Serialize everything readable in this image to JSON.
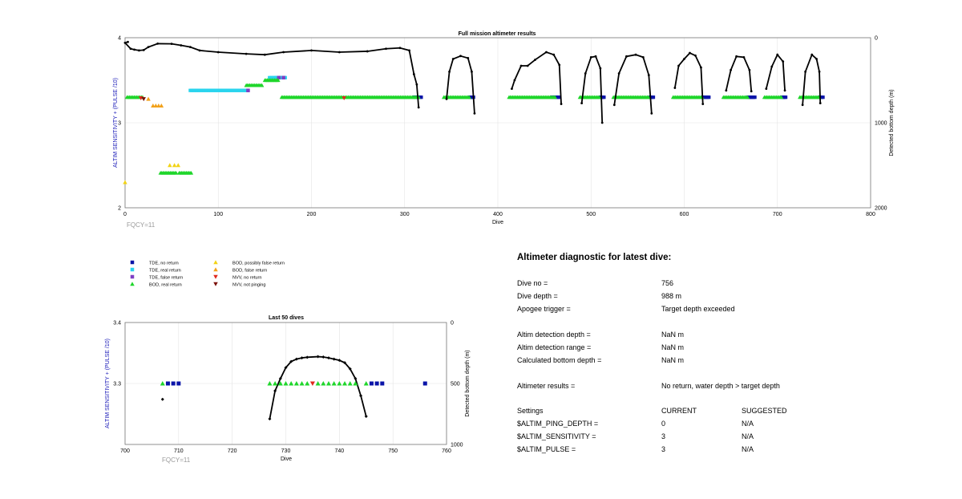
{
  "chart_data": [
    {
      "type": "scatter",
      "title": "Full mission altimeter results",
      "xlabel": "Dive",
      "ylabel": "ALTIM SENSITIVITY + (PULSE /10)",
      "y2label": "Detected bottom depth (m)",
      "xlim": [
        0,
        800
      ],
      "ylim": [
        2,
        4
      ],
      "y2lim": [
        2000,
        0
      ],
      "xticks": [
        "0",
        "100",
        "200",
        "300",
        "400",
        "500",
        "600",
        "700",
        "800"
      ],
      "yticks": [
        "2",
        "3",
        "4"
      ],
      "y2ticks": [
        "0",
        "1000",
        "2000"
      ],
      "grid": true,
      "annotation": "FQCY=11",
      "series": [
        {
          "name": "TDE, no return",
          "marker": "square",
          "color": "#0a14a8",
          "segments": [
            [
              310,
              318
            ],
            [
              370,
              374
            ],
            [
              458,
              466
            ],
            [
              510,
              514
            ],
            [
              563,
              567
            ],
            [
              620,
              627
            ],
            [
              668,
              676
            ],
            [
              705,
              710
            ],
            [
              745,
              750
            ]
          ]
        },
        {
          "name": "TDE, real return",
          "marker": "square",
          "color": "#2ad4ee",
          "segments": [
            [
              70,
              132
            ],
            [
              155,
              172
            ],
            [
              162,
              172
            ]
          ]
        },
        {
          "name": "TDE, false return",
          "marker": "square",
          "color": "#7e3fc4",
          "points": [
            [
              132,
              3.38
            ],
            [
              170,
              3.53
            ],
            [
              165,
              3.53
            ]
          ]
        },
        {
          "name": "BOD, real return",
          "marker": "triangle-up",
          "color": "#1fd62b",
          "segments": [
            [
              2,
              20
            ],
            [
              168,
              316
            ],
            [
              342,
              370
            ],
            [
              412,
              462
            ],
            [
              488,
              510
            ],
            [
              524,
              562
            ],
            [
              588,
              620
            ],
            [
              642,
              668
            ],
            [
              686,
              705
            ],
            [
              724,
              745
            ],
            [
              130,
              148
            ],
            [
              150,
              165
            ],
            [
              38,
              55
            ],
            [
              58,
              72
            ]
          ]
        },
        {
          "name": "BOD, possibly false return",
          "marker": "triangle-up",
          "color": "#f2d315",
          "points": [
            [
              0,
              2.3
            ],
            [
              48,
              2.5
            ],
            [
              53,
              2.5
            ],
            [
              57,
              2.5
            ]
          ]
        },
        {
          "name": "BOD, false return",
          "marker": "triangle-up",
          "color": "#f2a11a",
          "points": [
            [
              30,
              3.2
            ],
            [
              33,
              3.2
            ],
            [
              36,
              3.2
            ],
            [
              39,
              3.2
            ],
            [
              25,
              3.28
            ]
          ]
        },
        {
          "name": "NVV, no return",
          "marker": "triangle-down",
          "color": "#e0281d",
          "points": [
            [
              17,
              3.29
            ],
            [
              235,
              3.29
            ]
          ]
        },
        {
          "name": "NVV, not pinging",
          "marker": "triangle-down",
          "color": "#7a1008",
          "points": [
            [
              20,
              3.28
            ]
          ]
        }
      ]
    },
    {
      "type": "scatter",
      "title": "Last 50 dives",
      "xlabel": "Dive",
      "ylabel": "ALTIM SENSITIVITY + (PULSE /10)",
      "y2label": "Detected bottom depth (m)",
      "xlim": [
        700,
        760
      ],
      "ylim": [
        3.2,
        3.4
      ],
      "y2lim": [
        1000,
        0
      ],
      "xticks": [
        "700",
        "710",
        "720",
        "730",
        "740",
        "750",
        "760"
      ],
      "yticks": [
        "3.3",
        "3.4"
      ],
      "y2ticks": [
        "0",
        "500",
        "1000"
      ],
      "grid": true,
      "annotation": "FQCY=11",
      "series": [
        {
          "name": "TDE, no return",
          "marker": "square",
          "color": "#0a14a8",
          "x": [
            708,
            709,
            710,
            746,
            747,
            748,
            756
          ],
          "y": 3.3
        },
        {
          "name": "BOD, real return",
          "marker": "triangle-up",
          "color": "#1fd62b",
          "x": [
            707,
            727,
            728,
            729,
            730,
            731,
            732,
            733,
            734,
            736,
            737,
            738,
            739,
            740,
            741,
            742,
            743,
            745
          ],
          "y": 3.3
        },
        {
          "name": "NVV, no return",
          "marker": "triangle-down",
          "color": "#e0281d",
          "x": [
            735
          ],
          "y": 3.3
        },
        {
          "name": "detected bottom depth",
          "marker": "diamond",
          "color": "#000000",
          "x": [
            707,
            727,
            728,
            729,
            730,
            731,
            732,
            733,
            734,
            736,
            737,
            738,
            739,
            740,
            741,
            742,
            743,
            744,
            745
          ],
          "depth": [
            630,
            790,
            560,
            460,
            370,
            320,
            300,
            290,
            285,
            280,
            283,
            290,
            300,
            310,
            330,
            380,
            460,
            600,
            770
          ]
        }
      ]
    }
  ],
  "legend": [
    {
      "label": "TDE, no return",
      "marker": "square",
      "color": "#0a14a8"
    },
    {
      "label": "TDE, real return",
      "marker": "square",
      "color": "#2ad4ee"
    },
    {
      "label": "TDE, false return",
      "marker": "square",
      "color": "#7e3fc4"
    },
    {
      "label": "BOD, real return",
      "marker": "triangle-up",
      "color": "#1fd62b"
    },
    {
      "label": "BOD, possibly false return",
      "marker": "triangle-up",
      "color": "#f2d315"
    },
    {
      "label": "BOD, false return",
      "marker": "triangle-up",
      "color": "#f2a11a"
    },
    {
      "label": "NVV, no return",
      "marker": "triangle-down",
      "color": "#e0281d"
    },
    {
      "label": "NVV, not pinging",
      "marker": "triangle-down",
      "color": "#7a1008"
    }
  ],
  "diagnostic": {
    "title": "Altimeter diagnostic for latest dive:",
    "rows": [
      {
        "label": "Dive no =",
        "value": "756"
      },
      {
        "label": "Dive depth =",
        "value": "988 m"
      },
      {
        "label": "Apogee trigger =",
        "value": "Target depth exceeded"
      },
      {
        "label": "Altim detection depth =",
        "value": "NaN m"
      },
      {
        "label": "Altim detection range =",
        "value": "NaN m"
      },
      {
        "label": "Calculated bottom depth =",
        "value": "NaN m"
      },
      {
        "label": "Altimeter results =",
        "value": "No return, water depth > target depth"
      }
    ],
    "settings_header": {
      "label": "Settings",
      "current": "CURRENT",
      "suggested": "SUGGESTED"
    },
    "settings": [
      {
        "label": "$ALTIM_PING_DEPTH =",
        "current": "0",
        "suggested": "N/A"
      },
      {
        "label": "$ALTIM_SENSITIVITY =",
        "current": "3",
        "suggested": "N/A"
      },
      {
        "label": "$ALTIM_PULSE =",
        "current": "3",
        "suggested": "N/A"
      }
    ]
  },
  "colors": {
    "axis_label_blue": "#1a1ab8",
    "grid": "#e4e4e4",
    "annotation_grey": "#9a9a9a",
    "depth_line": "#000000"
  }
}
